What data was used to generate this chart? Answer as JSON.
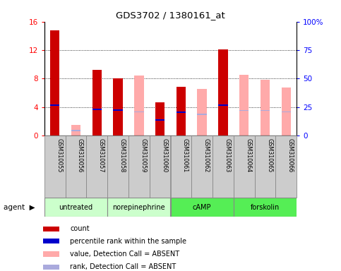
{
  "title": "GDS3702 / 1380161_at",
  "samples": [
    "GSM310055",
    "GSM310056",
    "GSM310057",
    "GSM310058",
    "GSM310059",
    "GSM310060",
    "GSM310061",
    "GSM310062",
    "GSM310063",
    "GSM310064",
    "GSM310065",
    "GSM310066"
  ],
  "red_bars": [
    14.8,
    0,
    9.2,
    8.0,
    0,
    4.7,
    6.8,
    0,
    12.1,
    0,
    0,
    0
  ],
  "pink_bars": [
    0,
    1.5,
    0,
    0,
    8.4,
    0,
    0,
    6.5,
    0,
    8.5,
    7.8,
    6.7
  ],
  "blue_markers": [
    4.3,
    0,
    3.7,
    3.6,
    0,
    2.2,
    3.3,
    0,
    4.3,
    0,
    0,
    0
  ],
  "lightblue_markers": [
    0,
    0.7,
    0,
    0,
    3.3,
    0,
    0,
    3.0,
    0,
    3.5,
    3.5,
    3.3
  ],
  "ylim_left": [
    0,
    16
  ],
  "ylim_right": [
    0,
    100
  ],
  "yticks_left": [
    0,
    4,
    8,
    12,
    16
  ],
  "yticks_right": [
    0,
    25,
    50,
    75,
    100
  ],
  "ytick_labels_right": [
    "0",
    "25",
    "50",
    "75",
    "100%"
  ],
  "bar_width": 0.45,
  "red_color": "#cc0000",
  "pink_color": "#ffaaaa",
  "blue_color": "#0000cc",
  "lightblue_color": "#aaaadd",
  "agent_groups": [
    {
      "label": "untreated",
      "start": 0,
      "end": 2,
      "color": "#ccffcc"
    },
    {
      "label": "norepinephrine",
      "start": 3,
      "end": 5,
      "color": "#ccffcc"
    },
    {
      "label": "cAMP",
      "start": 6,
      "end": 8,
      "color": "#55ee55"
    },
    {
      "label": "forskolin",
      "start": 9,
      "end": 11,
      "color": "#55ee55"
    }
  ],
  "legend_items": [
    {
      "color": "#cc0000",
      "label": "count"
    },
    {
      "color": "#0000cc",
      "label": "percentile rank within the sample"
    },
    {
      "color": "#ffaaaa",
      "label": "value, Detection Call = ABSENT"
    },
    {
      "color": "#aaaadd",
      "label": "rank, Detection Call = ABSENT"
    }
  ]
}
